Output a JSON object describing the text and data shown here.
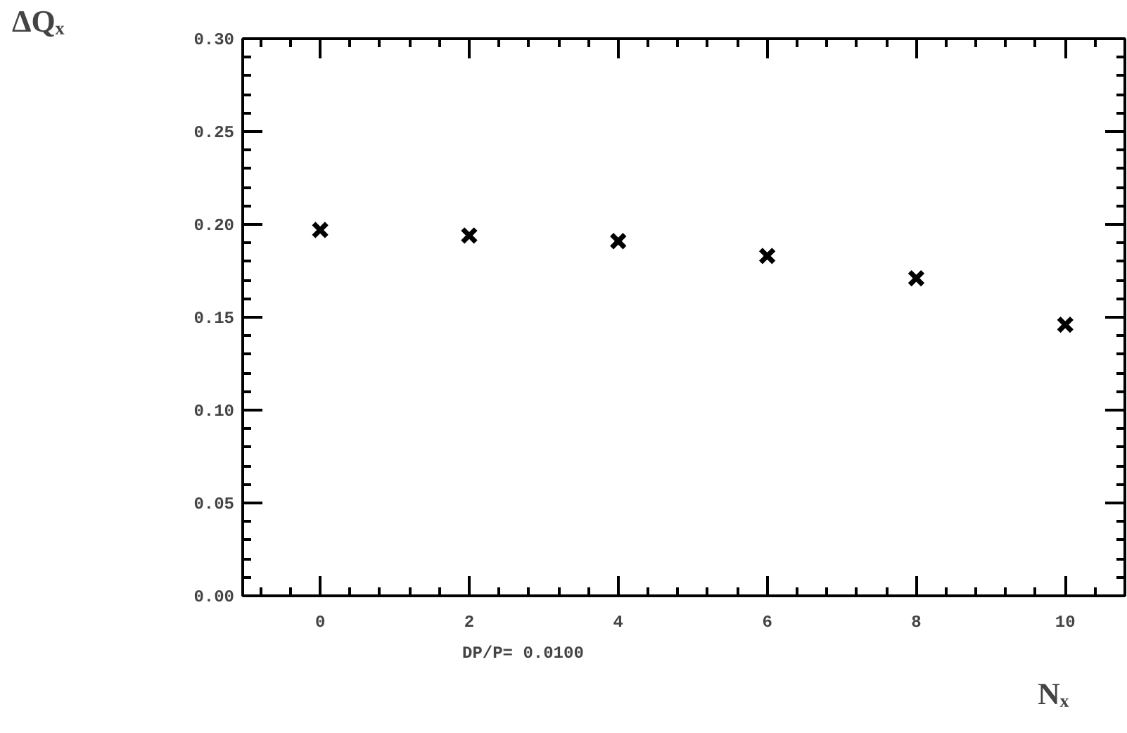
{
  "chart_data": {
    "type": "scatter",
    "xlabel": "Nₓ",
    "ylabel": "ΔQₓ",
    "annotations": [
      "DP/P=    0.0100"
    ],
    "x": [
      0,
      2,
      4,
      6,
      8,
      10
    ],
    "values": [
      0.197,
      0.194,
      0.191,
      0.183,
      0.171,
      0.146
    ],
    "color": "#000000",
    "marker": "cross",
    "grid": false,
    "xlim": [
      -1.04,
      10.8
    ],
    "ylim": [
      0,
      0.3
    ],
    "xticks": [
      0,
      2,
      4,
      6,
      8,
      10
    ],
    "yticks": [
      {
        "value": 0,
        "label": "0.00"
      },
      {
        "value": 0.05,
        "label": "0.05"
      },
      {
        "value": 0.1,
        "label": "0.10"
      },
      {
        "value": 0.15,
        "label": "0.15"
      },
      {
        "value": 0.2,
        "label": "0.20"
      },
      {
        "value": 0.25,
        "label": "0.25"
      },
      {
        "value": 0.3,
        "label": "0.30"
      }
    ]
  }
}
